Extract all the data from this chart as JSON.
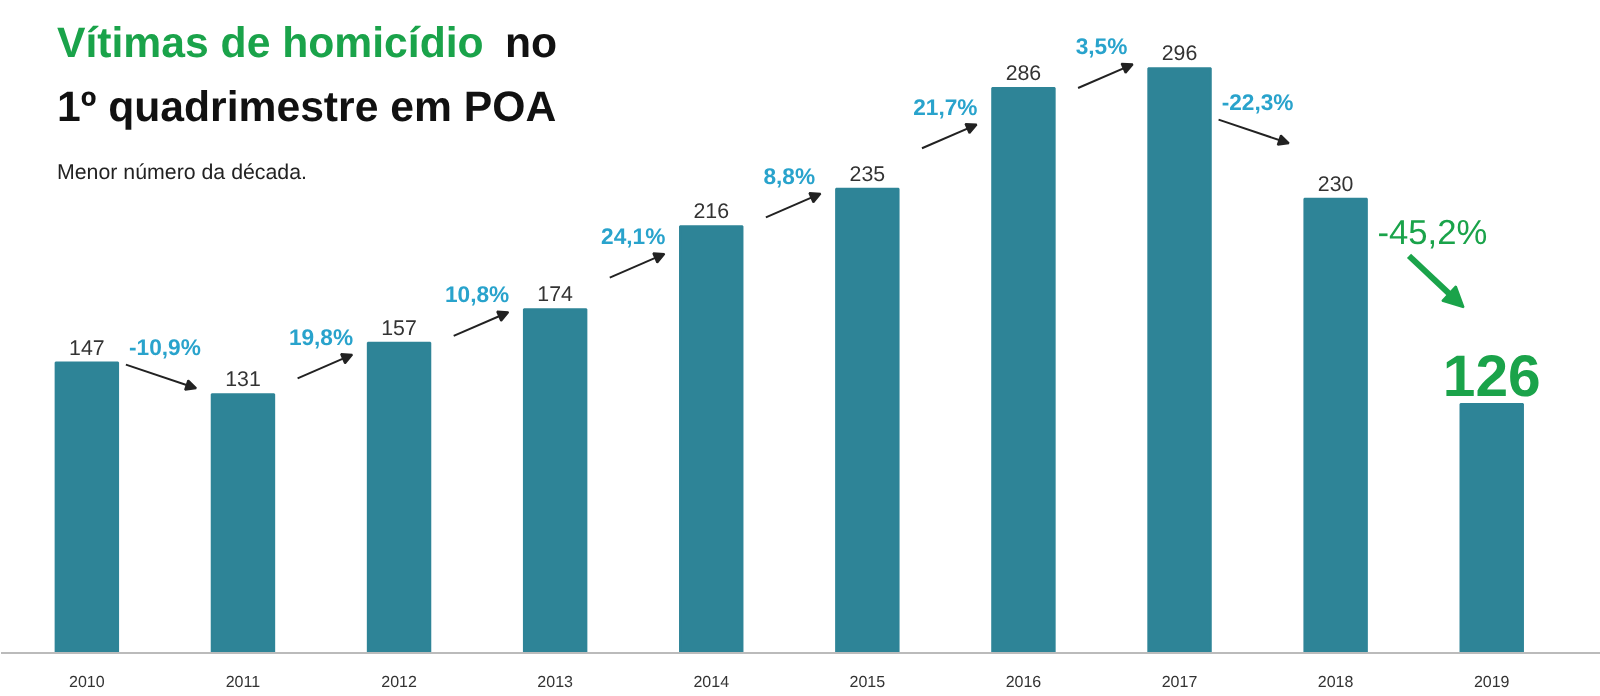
{
  "chart_data": {
    "type": "bar",
    "title": "Vítimas de homicídio no 1º quadrimestre em POA",
    "subtitle": "Menor número da década.",
    "categories": [
      "2010",
      "2011",
      "2012",
      "2013",
      "2014",
      "2015",
      "2016",
      "2017",
      "2018",
      "2019"
    ],
    "values": [
      147,
      131,
      157,
      174,
      216,
      235,
      286,
      296,
      230,
      126
    ],
    "color": "#2e8497",
    "data_labels": true,
    "grid": false,
    "annotations": [
      "-10,9%",
      "19,8%",
      "10,8%",
      "24,1%",
      "8,8%",
      "21,7%",
      "3,5%",
      "-22,3%",
      "-45,2%"
    ]
  }
}
